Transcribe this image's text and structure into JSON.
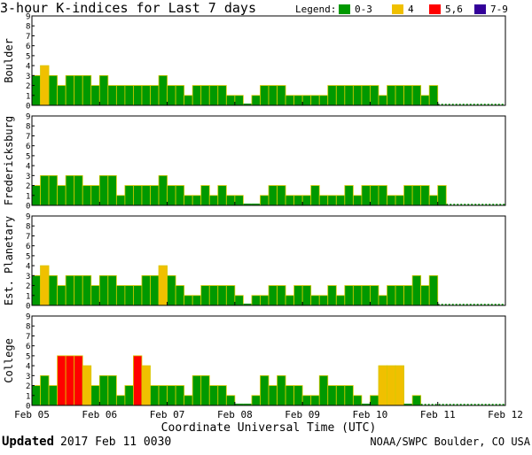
{
  "chart_data": {
    "type": "bar",
    "title": "3-hour K-indices for Last 7 days",
    "legend": {
      "label": "Legend:",
      "placement": "top-right",
      "entries": [
        {
          "label": "0-3",
          "color": "#009900"
        },
        {
          "label": "4",
          "color": "#f0c000"
        },
        {
          "label": "5,6",
          "color": "#ff0000"
        },
        {
          "label": "7-9",
          "color": "#330099"
        }
      ]
    },
    "xlabel": "Coordinate Universal Time (UTC)",
    "x_ticks": [
      "Feb 05",
      "Feb 06",
      "Feb 07",
      "Feb 08",
      "Feb 09",
      "Feb 10",
      "Feb 11",
      "Feb 12"
    ],
    "y_ticks": [
      "0",
      "1",
      "2",
      "3",
      "4",
      "5",
      "6",
      "7",
      "8",
      "9"
    ],
    "ylim": [
      0,
      9
    ],
    "interval_hours": 3,
    "x_range": [
      "2017-02-05 00:00",
      "2017-02-12 00:00"
    ],
    "grid": false,
    "series": [
      {
        "name": "Boulder",
        "values": [
          3,
          4,
          3,
          2,
          3,
          3,
          3,
          2,
          3,
          2,
          2,
          2,
          2,
          2,
          2,
          3,
          2,
          2,
          1,
          2,
          2,
          2,
          2,
          1,
          1,
          0,
          1,
          2,
          2,
          2,
          1,
          1,
          1,
          1,
          1,
          2,
          2,
          2,
          2,
          2,
          2,
          1,
          2,
          2,
          2,
          2,
          1,
          2
        ]
      },
      {
        "name": "Fredericksburg",
        "values": [
          2,
          3,
          3,
          2,
          3,
          3,
          2,
          2,
          3,
          3,
          1,
          2,
          2,
          2,
          2,
          3,
          2,
          2,
          1,
          1,
          2,
          1,
          2,
          1,
          1,
          0,
          0,
          1,
          2,
          2,
          1,
          1,
          1,
          2,
          1,
          1,
          1,
          2,
          1,
          2,
          2,
          2,
          1,
          1,
          2,
          2,
          2,
          1,
          2
        ]
      },
      {
        "name": "Est. Planetary",
        "values": [
          3,
          4,
          3,
          2,
          3,
          3,
          3,
          2,
          3,
          3,
          2,
          2,
          2,
          3,
          3,
          4,
          3,
          2,
          1,
          1,
          2,
          2,
          2,
          2,
          1,
          0,
          1,
          1,
          2,
          2,
          1,
          2,
          2,
          1,
          1,
          2,
          1,
          2,
          2,
          2,
          2,
          1,
          2,
          2,
          2,
          3,
          2,
          3
        ]
      },
      {
        "name": "College",
        "values": [
          2,
          3,
          2,
          5,
          5,
          5,
          4,
          2,
          3,
          3,
          1,
          2,
          5,
          4,
          2,
          2,
          2,
          2,
          1,
          3,
          3,
          2,
          2,
          1,
          0,
          0,
          1,
          3,
          2,
          3,
          2,
          2,
          1,
          1,
          3,
          2,
          2,
          2,
          1,
          0,
          1,
          4,
          4,
          4,
          0,
          1
        ]
      }
    ]
  },
  "footer": {
    "updated_label": "Updated",
    "updated_time": "2017 Feb 11 0030",
    "credit": "NOAA/SWPC Boulder, CO USA"
  }
}
